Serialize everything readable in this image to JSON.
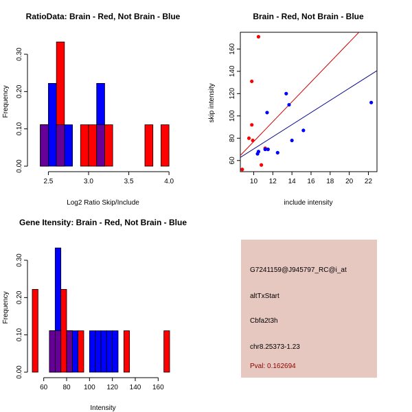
{
  "chart_data": [
    {
      "type": "bar",
      "title": "RatioData: Brain - Red, Not Brain - Blue",
      "xlabel": "Log2 Ratio Skip/Include",
      "ylabel": "Frequency",
      "xlim": [
        2.3,
        4.05
      ],
      "ylim": [
        0,
        0.335
      ],
      "xticks": [
        "2.5",
        "3.0",
        "3.5",
        "4.0"
      ],
      "xtick_values": [
        2.5,
        3.0,
        3.5,
        4.0
      ],
      "yticks": [
        "0.00",
        "0.10",
        "0.20",
        "0.30"
      ],
      "ytick_values": [
        0,
        0.1,
        0.2,
        0.3
      ],
      "series": [
        {
          "name": "Not Brain",
          "color": "#0000ff",
          "bins": [
            [
              2.4,
              2.5,
              0.111
            ],
            [
              2.5,
              2.6,
              0.222
            ],
            [
              2.6,
              2.7,
              0.111
            ],
            [
              2.7,
              2.8,
              0.111
            ],
            [
              3.1,
              3.2,
              0.222
            ]
          ]
        },
        {
          "name": "Brain",
          "color": "#ff0000",
          "bins": [
            [
              2.4,
              2.5,
              0.111
            ],
            [
              2.6,
              2.7,
              0.333
            ],
            [
              2.9,
              3.0,
              0.111
            ],
            [
              3.0,
              3.1,
              0.111
            ],
            [
              3.1,
              3.2,
              0.111
            ],
            [
              3.2,
              3.3,
              0.111
            ],
            [
              3.7,
              3.8,
              0.111
            ],
            [
              3.9,
              4.0,
              0.111
            ]
          ]
        }
      ],
      "overlap_color": "#660099"
    },
    {
      "type": "scatter",
      "title": "Brain - Red, Not Brain - Blue",
      "xlabel": "include intensity",
      "ylabel": "skip intensity",
      "xlim": [
        8.6,
        22.9
      ],
      "ylim": [
        50,
        175
      ],
      "xticks": [
        "10",
        "12",
        "14",
        "16",
        "18",
        "20",
        "22"
      ],
      "xtick_values": [
        10,
        12,
        14,
        16,
        18,
        20,
        22
      ],
      "yticks": [
        "60",
        "80",
        "100",
        "120",
        "140",
        "160"
      ],
      "ytick_values": [
        60,
        80,
        100,
        120,
        140,
        160
      ],
      "series": [
        {
          "name": "Brain",
          "color": "#ff0000",
          "points": [
            [
              8.8,
              52
            ],
            [
              9.5,
              80
            ],
            [
              9.8,
              92
            ],
            [
              9.8,
              131
            ],
            [
              9.9,
              78
            ],
            [
              10.5,
              171
            ],
            [
              10.8,
              56
            ],
            [
              11.2,
              71
            ]
          ]
        },
        {
          "name": "Not Brain",
          "color": "#0000ff",
          "points": [
            [
              10.4,
              66
            ],
            [
              10.5,
              68
            ],
            [
              11.2,
              70
            ],
            [
              11.5,
              70
            ],
            [
              11.4,
              103
            ],
            [
              12.5,
              67
            ],
            [
              13.4,
              120
            ],
            [
              13.7,
              110
            ],
            [
              14.0,
              78
            ],
            [
              15.2,
              87
            ],
            [
              22.3,
              112
            ]
          ]
        }
      ],
      "fit_lines": [
        {
          "name": "Brain fit",
          "color": "#cc0000",
          "slope": 8.9,
          "intercept": -12
        },
        {
          "name": "Not Brain fit",
          "color": "#00008b",
          "slope": 5.44,
          "intercept": 16
        }
      ]
    },
    {
      "type": "bar",
      "title": "Gene Itensity: Brain - Red, Not Brain - Blue",
      "xlabel": "Intensity",
      "ylabel": "Frequency",
      "xlim": [
        50,
        173
      ],
      "ylim": [
        0,
        0.335
      ],
      "xticks": [
        "60",
        "80",
        "100",
        "120",
        "140",
        "160"
      ],
      "xtick_values": [
        60,
        80,
        100,
        120,
        140,
        160
      ],
      "yticks": [
        "0.00",
        "0.10",
        "0.20",
        "0.30"
      ],
      "ytick_values": [
        0,
        0.1,
        0.2,
        0.3
      ],
      "series": [
        {
          "name": "Not Brain",
          "color": "#0000ff",
          "bins": [
            [
              65,
              70,
              0.111
            ],
            [
              70,
              75,
              0.333
            ],
            [
              80,
              85,
              0.111
            ],
            [
              85,
              90,
              0.111
            ],
            [
              100,
              105,
              0.111
            ],
            [
              105,
              110,
              0.111
            ],
            [
              110,
              115,
              0.111
            ],
            [
              115,
              120,
              0.111
            ],
            [
              120,
              125,
              0.111
            ]
          ]
        },
        {
          "name": "Brain",
          "color": "#ff0000",
          "bins": [
            [
              50,
              55,
              0.222
            ],
            [
              65,
              70,
              0.111
            ],
            [
              70,
              75,
              0.111
            ],
            [
              75,
              80,
              0.222
            ],
            [
              80,
              85,
              0.111
            ],
            [
              90,
              95,
              0.111
            ],
            [
              130,
              135,
              0.111
            ],
            [
              165,
              170,
              0.111
            ]
          ]
        }
      ],
      "overlap_color": "#660099"
    }
  ],
  "info_panel": {
    "background": "#e6c8c0",
    "probe_id": "G7241159@J945797_RC@i_at",
    "event_type": "altTxStart",
    "gene": "Cbfa2t3h",
    "location": "chr8.25373-1.23",
    "pval": "Pval: 0.162694",
    "pval_color": "#8b0000"
  }
}
